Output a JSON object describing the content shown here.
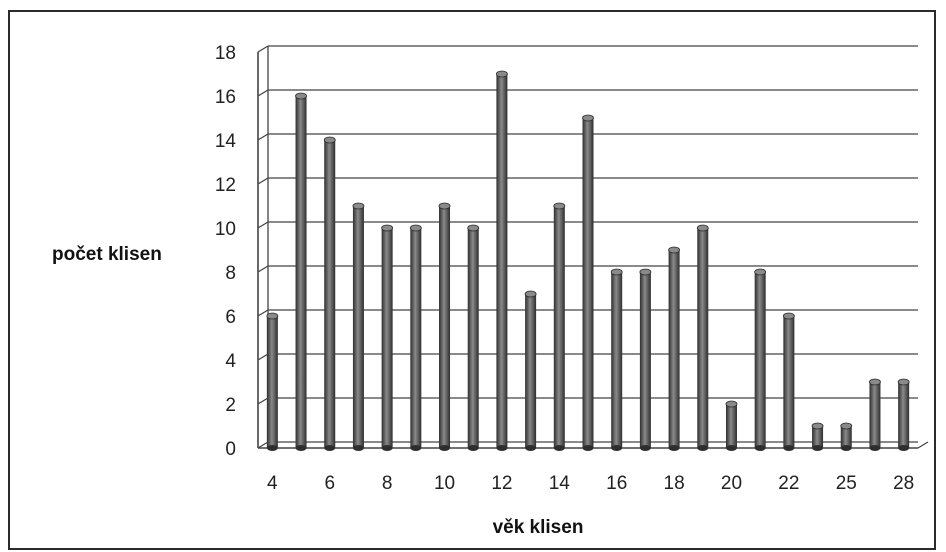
{
  "chart_data": {
    "type": "bar",
    "style": "3d-cylinder",
    "xlabel": "věk klisen",
    "ylabel": "počet klisen",
    "ylim": [
      0,
      18
    ],
    "yticks": [
      "0",
      "2",
      "4",
      "6",
      "8",
      "10",
      "12",
      "14",
      "16",
      "18"
    ],
    "xtick_labels": [
      "4",
      "6",
      "8",
      "10",
      "12",
      "14",
      "16",
      "18",
      "20",
      "22",
      "25",
      "28"
    ],
    "categories": [
      "4",
      "5",
      "6",
      "7",
      "8",
      "9",
      "10",
      "11",
      "12",
      "13",
      "14",
      "15",
      "16",
      "17",
      "18",
      "19",
      "20",
      "21",
      "22",
      "24",
      "25",
      "27",
      "28"
    ],
    "values": [
      6,
      16,
      14,
      11,
      10,
      10,
      11,
      10,
      17,
      7,
      11,
      15,
      8,
      8,
      9,
      10,
      2,
      8,
      6,
      1,
      1,
      3,
      3
    ],
    "grid": true,
    "legend": "none",
    "colors": {
      "bar": "#555555",
      "bar_highlight": "#8a8a8a",
      "bar_shadow": "#2e2e2e",
      "grid": "#444444",
      "frame": "#2b2b2b"
    }
  }
}
